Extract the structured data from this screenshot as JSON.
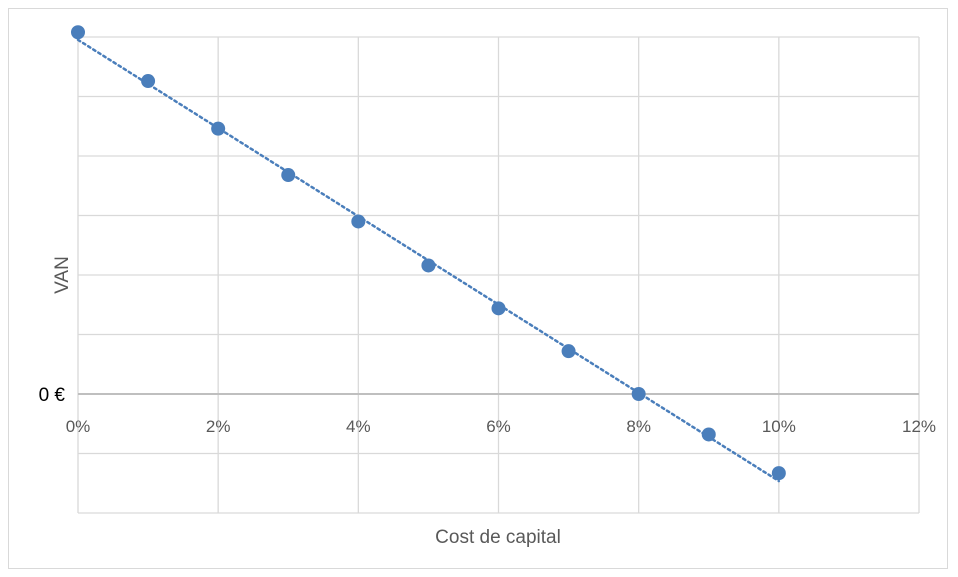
{
  "chart_data": {
    "type": "scatter",
    "title": "",
    "xlabel": "Cost de capital",
    "ylabel": "VAN",
    "x_ticks": [
      "0%",
      "2%",
      "4%",
      "6%",
      "8%",
      "10%",
      "12%"
    ],
    "xlim": [
      0,
      0.12
    ],
    "ylim": [
      -2,
      6
    ],
    "y_tick_step": 1,
    "y_tick_labels": [
      {
        "value": 0,
        "label": "0 €"
      }
    ],
    "grid": true,
    "legend": "none",
    "trendline": {
      "style": "dotted",
      "type": "linear"
    },
    "series": [
      {
        "x": [
          0,
          0.01,
          0.02,
          0.03,
          0.04,
          0.05,
          0.06,
          0.07,
          0.08,
          0.09,
          0.1
        ],
        "y": [
          6.08,
          5.26,
          4.46,
          3.68,
          2.9,
          2.16,
          1.44,
          0.72,
          0.0,
          -0.68,
          -1.33
        ]
      }
    ],
    "colors": {
      "point": "#4a7ebb",
      "trendline": "#4a7ebb",
      "grid": "#d9d9d9",
      "zero_axis": "#bfbfbf",
      "tick_text": "#595959"
    }
  }
}
